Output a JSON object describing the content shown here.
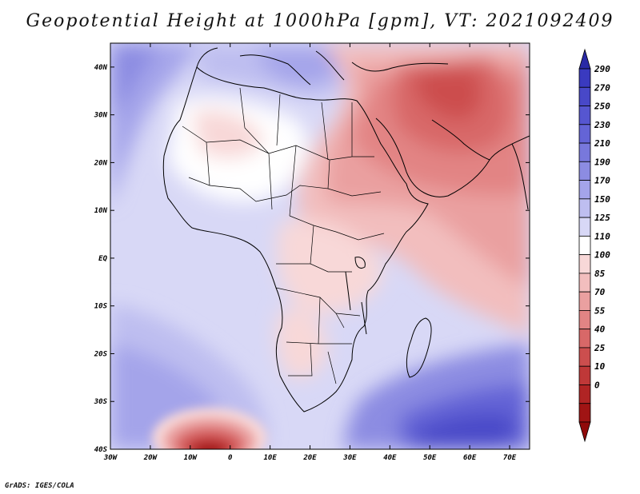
{
  "header": {
    "title": "Geopotential Height at 1000hPa [gpm], VT: 2021092409"
  },
  "map": {
    "projection": "latlon",
    "lon_range_deg": [
      -30,
      75
    ],
    "lat_range_deg": [
      -40,
      45
    ],
    "lat_labels": [
      "40N",
      "30N",
      "20N",
      "10N",
      "EQ",
      "10S",
      "20S",
      "30S",
      "40S"
    ],
    "lon_labels": [
      "30W",
      "20W",
      "10W",
      "0",
      "10E",
      "20E",
      "30E",
      "40E",
      "50E",
      "60E",
      "70E"
    ],
    "variable": "Geopotential Height",
    "level": "1000hPa",
    "units": "gpm",
    "valid_time": "2021092409"
  },
  "colorbar": {
    "levels": [
      "290",
      "270",
      "250",
      "230",
      "210",
      "190",
      "170",
      "150",
      "125",
      "110",
      "100",
      "85",
      "70",
      "55",
      "40",
      "25",
      "10",
      "0"
    ],
    "colors": [
      "#3a3abf",
      "#4848c8",
      "#5656d0",
      "#6464d6",
      "#7878dc",
      "#8c8ce2",
      "#a4a4ea",
      "#bebef0",
      "#d8d8f6",
      "#ffffff",
      "#f8d8d8",
      "#f2bebe",
      "#eaa0a0",
      "#e28484",
      "#d86868",
      "#cc4e4e",
      "#bf3838",
      "#b02424",
      "#a01414"
    ],
    "top_arrow_color": "#2a2aa6",
    "bottom_arrow_color": "#900a0a"
  },
  "footer": {
    "credit": "GrADS: IGES/COLA"
  }
}
